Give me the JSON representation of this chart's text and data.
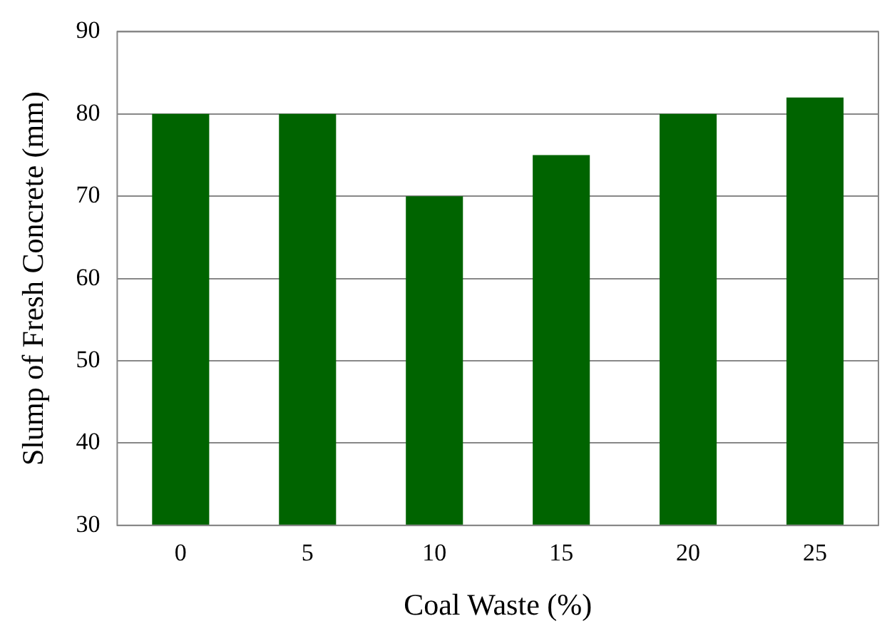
{
  "chart_data": {
    "type": "bar",
    "xlabel": "Coal Waste (%)",
    "ylabel": "Slump of Fresh Concrete (mm)",
    "categories": [
      "0",
      "5",
      "10",
      "15",
      "20",
      "25"
    ],
    "values": [
      80,
      80,
      70,
      75,
      80,
      82
    ],
    "color": "#006400",
    "ylim": [
      30,
      90
    ],
    "yticks": [
      30,
      40,
      50,
      60,
      70,
      80,
      90
    ],
    "grid": "y",
    "legend": false
  }
}
